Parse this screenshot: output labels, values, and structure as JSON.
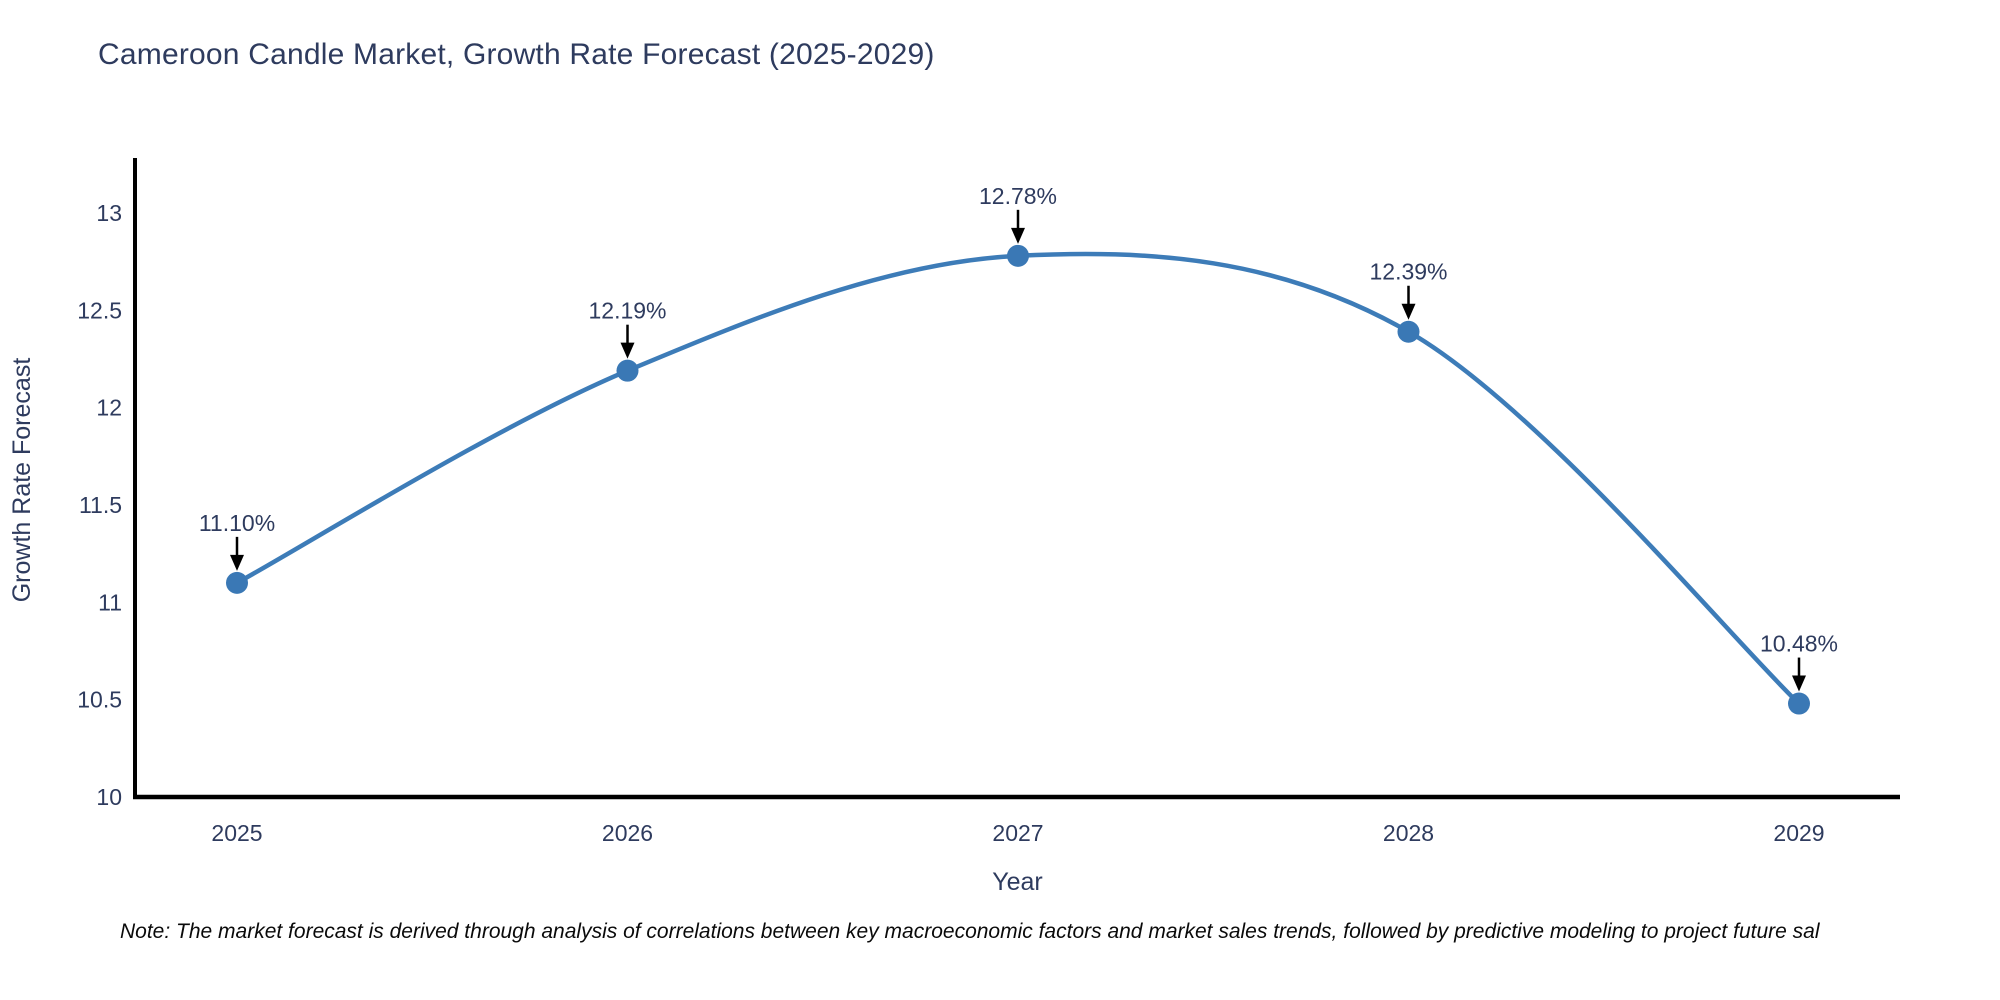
{
  "title": "Cameroon Candle Market, Growth Rate Forecast (2025-2029)",
  "note": "Note: The market forecast is derived through analysis of correlations between key macroeconomic factors and market sales trends, followed by predictive modeling to project future sal",
  "chart_data": {
    "type": "line",
    "title": "Cameroon Candle Market, Growth Rate Forecast (2025-2029)",
    "x": [
      "2025",
      "2026",
      "2027",
      "2028",
      "2029"
    ],
    "values": [
      11.1,
      12.19,
      12.78,
      12.39,
      10.48
    ],
    "point_labels": [
      "11.10%",
      "12.19%",
      "12.78%",
      "12.39%",
      "10.48%"
    ],
    "xlabel": "Year",
    "ylabel": "Growth Rate Forecast",
    "yticks": [
      "13",
      "12.5",
      "12",
      "11.5",
      "11",
      "10.5",
      "10"
    ],
    "ylim": [
      10,
      13.27
    ],
    "line_shape": "spline",
    "grid": false,
    "legend": "none",
    "colors": {
      "line": "#3d7cb8",
      "marker": "#3a78b5",
      "text": "#2e3b5e",
      "axis": "#000000",
      "annotation_arrow": "#000000",
      "background": "#ffffff"
    }
  }
}
